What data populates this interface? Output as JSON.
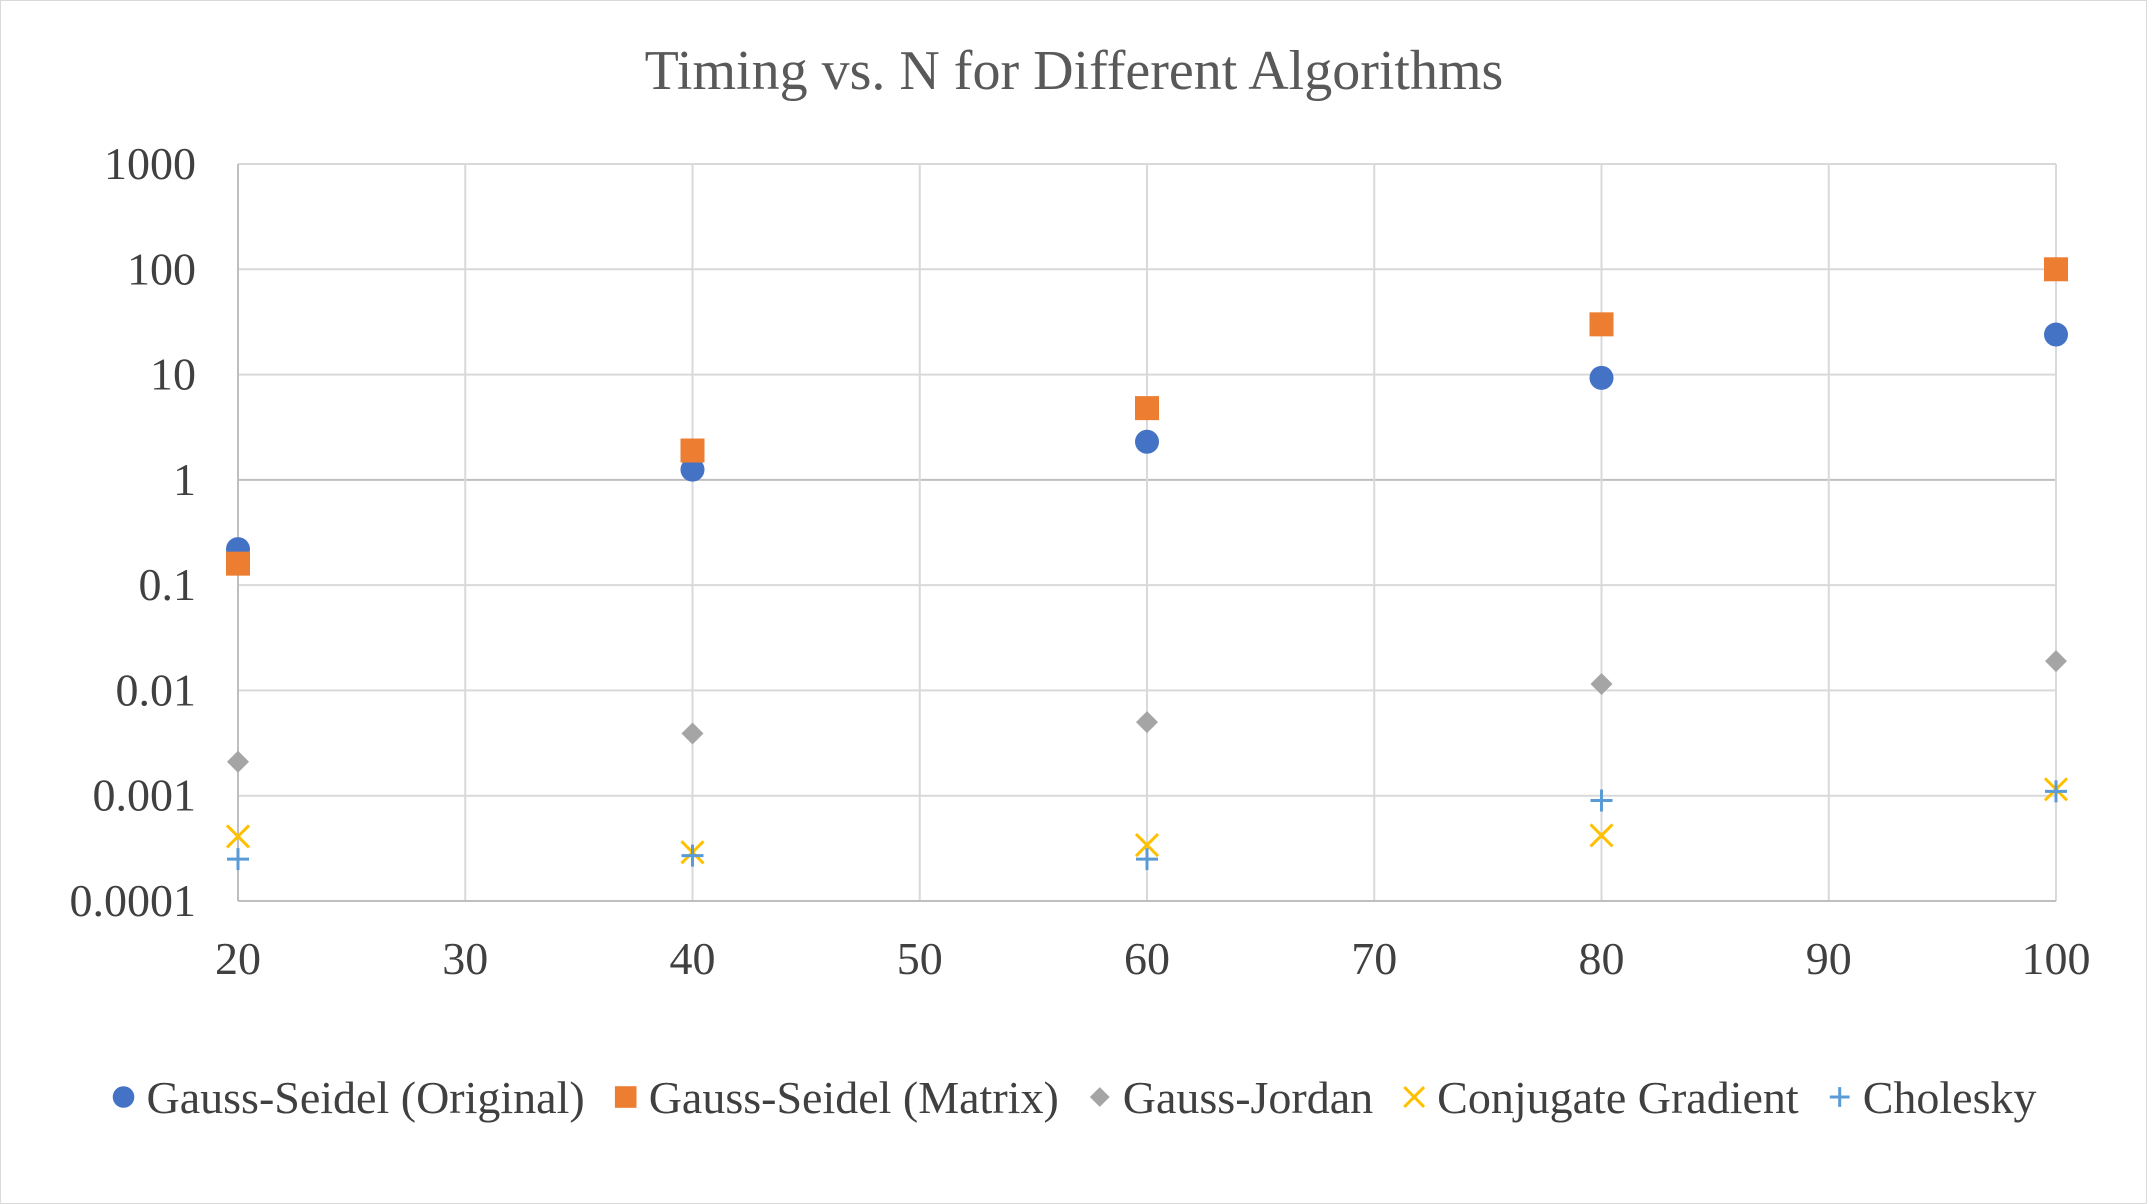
{
  "chart_data": {
    "type": "scatter",
    "title": "Timing vs. N for Different Algorithms",
    "xlabel": "",
    "ylabel": "",
    "xlim": [
      20,
      100
    ],
    "xticks": [
      20,
      30,
      40,
      50,
      60,
      70,
      80,
      90,
      100
    ],
    "xtick_labels": [
      "20",
      "30",
      "40",
      "50",
      "60",
      "70",
      "80",
      "90",
      "100"
    ],
    "ylim": [
      0.0001,
      1000
    ],
    "yscale": "log",
    "yticks": [
      0.0001,
      0.001,
      0.01,
      0.1,
      1,
      10,
      100,
      1000
    ],
    "ytick_labels": [
      "0.0001",
      "0.001",
      "0.01",
      "0.1",
      "1",
      "10",
      "100",
      "1000"
    ],
    "grid": true,
    "legend_position": "bottom",
    "series": [
      {
        "name": "Gauss-Seidel (Original)",
        "marker": "circle",
        "color": "#4472C4",
        "x": [
          20,
          40,
          60,
          80,
          100
        ],
        "y": [
          0.22,
          1.25,
          2.3,
          9.3,
          24
        ]
      },
      {
        "name": "Gauss-Seidel (Matrix)",
        "marker": "square",
        "color": "#ED7D31",
        "x": [
          20,
          40,
          60,
          80,
          100
        ],
        "y": [
          0.16,
          1.9,
          4.8,
          30,
          100
        ]
      },
      {
        "name": "Gauss-Jordan",
        "marker": "diamond",
        "color": "#A5A5A5",
        "x": [
          20,
          40,
          60,
          80,
          100
        ],
        "y": [
          0.0021,
          0.0039,
          0.005,
          0.0115,
          0.019
        ]
      },
      {
        "name": "Conjugate Gradient",
        "marker": "x",
        "color": "#FFC000",
        "x": [
          20,
          40,
          60,
          80,
          100
        ],
        "y": [
          0.00041,
          0.00029,
          0.00034,
          0.00042,
          0.00115
        ]
      },
      {
        "name": "Cholesky",
        "marker": "plus",
        "color": "#5B9BD5",
        "x": [
          20,
          40,
          60,
          80,
          100
        ],
        "y": [
          0.00025,
          0.00027,
          0.00025,
          0.0009,
          0.0011
        ]
      }
    ]
  }
}
